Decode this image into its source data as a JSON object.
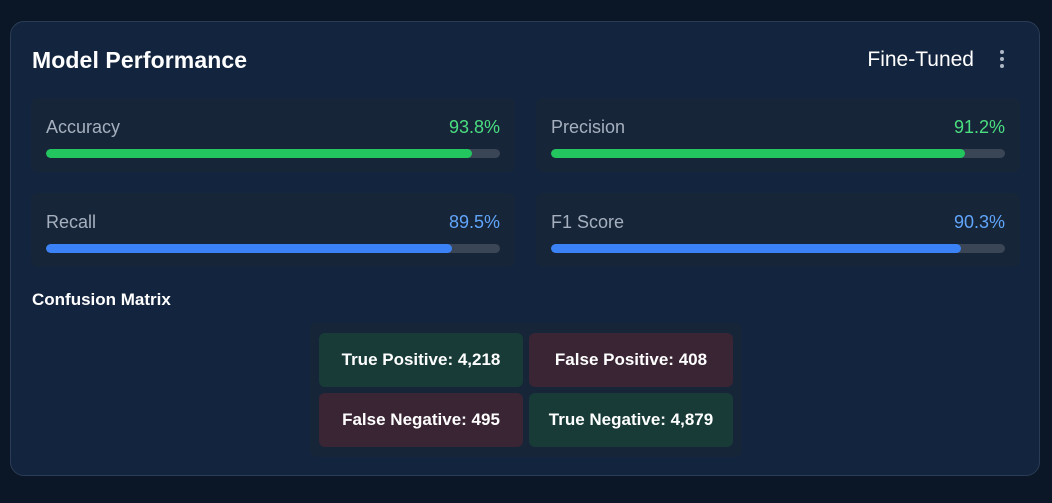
{
  "card": {
    "title": "Model Performance",
    "mode_label": "Fine-Tuned",
    "menu_icon": "vertical-ellipsis-icon"
  },
  "metrics": [
    {
      "label": "Accuracy",
      "value_text": "93.8%",
      "value": 93.8,
      "color": "#22c55e"
    },
    {
      "label": "Precision",
      "value_text": "91.2%",
      "value": 91.2,
      "color": "#22c55e"
    },
    {
      "label": "Recall",
      "value_text": "89.5%",
      "value": 89.5,
      "color": "#3b82f6"
    },
    {
      "label": "F1 Score",
      "value_text": "90.3%",
      "value": 90.3,
      "color": "#3b82f6"
    }
  ],
  "value_colors": {
    "green": "#4ade80",
    "blue": "#60a5fa"
  },
  "confusion_matrix": {
    "title": "Confusion Matrix",
    "cells": [
      {
        "text": "True Positive: 4,218"
      },
      {
        "text": "False Positive: 408"
      },
      {
        "text": "False Negative: 495"
      },
      {
        "text": "True Negative: 4,879"
      }
    ]
  }
}
